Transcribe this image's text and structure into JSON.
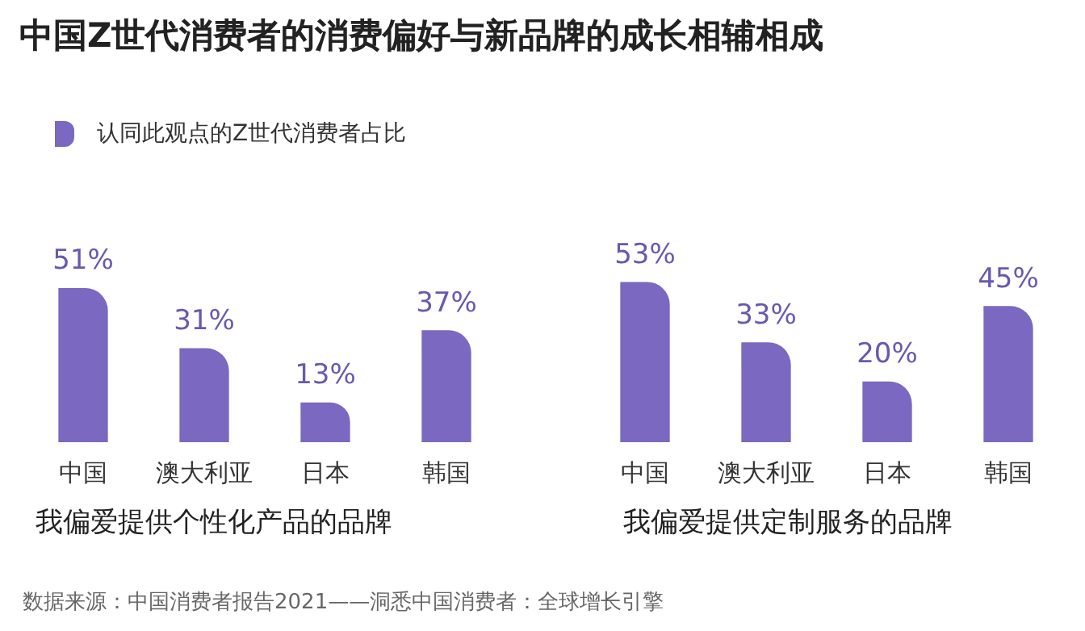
{
  "chart_data": [
    {
      "type": "bar",
      "title": "中国Z世代消费者的消费偏好与新品牌的成长相辅相成",
      "legend": "top left",
      "categories": [
        "中国",
        "澳大利亚",
        "日本",
        "韩国"
      ],
      "series": [
        {
          "name": "认同此观点的Z世代消费者占比",
          "color": "#7b68c0",
          "values": [
            51,
            31,
            13,
            37
          ],
          "value_labels": [
            "51%",
            "31%",
            "13%",
            "37%"
          ]
        }
      ],
      "xlabel": "我偏爱提供个性化产品的品牌"
    },
    {
      "type": "bar",
      "categories": [
        "中国",
        "澳大利亚",
        "日本",
        "韩国"
      ],
      "series": [
        {
          "color": "#7b68c0",
          "values": [
            53,
            33,
            20,
            45
          ],
          "value_labels": [
            "53%",
            "33%",
            "20%",
            "45%"
          ]
        }
      ],
      "xlabel": "我偏爱提供定制服务的品牌",
      "annotations": [
        "数据来源：中国消费者报告2021——洞悉中国消费者：全球增长引擎"
      ]
    }
  ]
}
